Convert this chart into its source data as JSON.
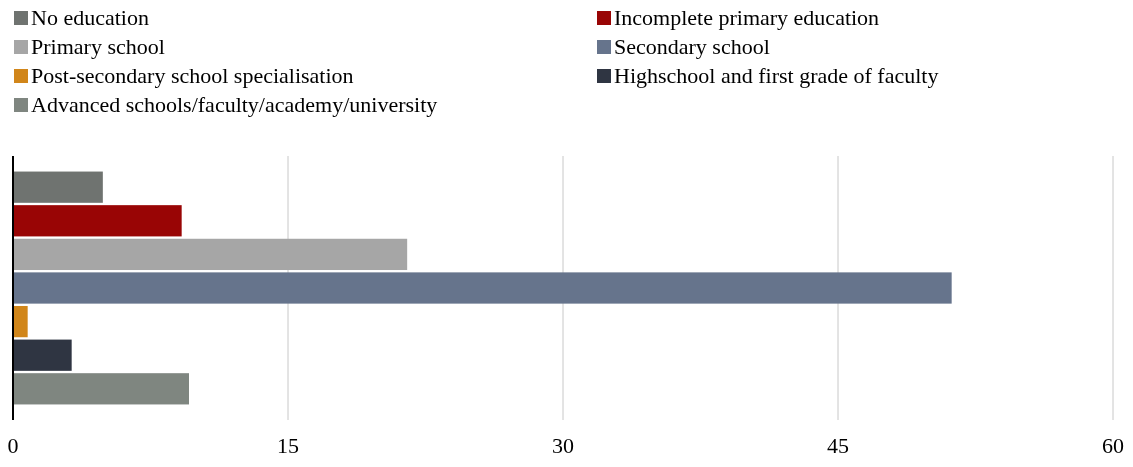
{
  "chart_data": {
    "type": "bar",
    "orientation": "horizontal",
    "categories": [
      null
    ],
    "series": [
      {
        "name": "No education",
        "color": "#6f7370",
        "values": [
          4.9
        ]
      },
      {
        "name": "Incomplete primary education",
        "color": "#990505",
        "values": [
          9.2
        ]
      },
      {
        "name": "Primary school",
        "color": "#a6a6a6",
        "values": [
          21.5
        ]
      },
      {
        "name": "Secondary school",
        "color": "#66748c",
        "values": [
          51.2
        ]
      },
      {
        "name": "Post-secondary school specialisation",
        "color": "#d1861a",
        "values": [
          0.8
        ]
      },
      {
        "name": "Highschool and first grade of faculty",
        "color": "#2f3542",
        "values": [
          3.2
        ]
      },
      {
        "name": "Advanced schools/faculty/academy/university",
        "color": "#7f8680",
        "values": [
          9.6
        ]
      }
    ],
    "xlim": [
      0,
      60
    ],
    "xticks": [
      0,
      15,
      30,
      45,
      60
    ],
    "grid": "x",
    "legend": "top"
  }
}
